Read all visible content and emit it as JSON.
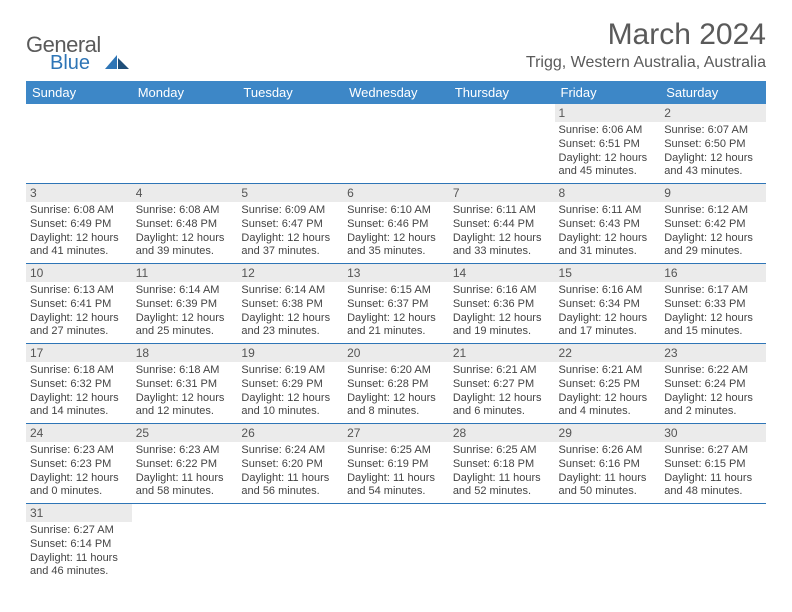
{
  "brand": {
    "part1": "General",
    "part2": "Blue"
  },
  "title": "March 2024",
  "location": "Trigg, Western Australia, Australia",
  "colors": {
    "header_bg": "#3d87c7",
    "header_text": "#ffffff",
    "row_divider": "#2e75b6",
    "daynum_bg": "#ebebeb",
    "body_text": "#444444",
    "title_text": "#5a5a5a"
  },
  "fonts": {
    "body_pt": 11,
    "daynum_pt": 12,
    "header_pt": 13,
    "title_pt": 30,
    "location_pt": 16
  },
  "weekdays": [
    "Sunday",
    "Monday",
    "Tuesday",
    "Wednesday",
    "Thursday",
    "Friday",
    "Saturday"
  ],
  "leading_blanks": 5,
  "days": [
    {
      "n": "1",
      "sr": "6:06 AM",
      "ss": "6:51 PM",
      "dh": "12",
      "dm": "45"
    },
    {
      "n": "2",
      "sr": "6:07 AM",
      "ss": "6:50 PM",
      "dh": "12",
      "dm": "43"
    },
    {
      "n": "3",
      "sr": "6:08 AM",
      "ss": "6:49 PM",
      "dh": "12",
      "dm": "41"
    },
    {
      "n": "4",
      "sr": "6:08 AM",
      "ss": "6:48 PM",
      "dh": "12",
      "dm": "39"
    },
    {
      "n": "5",
      "sr": "6:09 AM",
      "ss": "6:47 PM",
      "dh": "12",
      "dm": "37"
    },
    {
      "n": "6",
      "sr": "6:10 AM",
      "ss": "6:46 PM",
      "dh": "12",
      "dm": "35"
    },
    {
      "n": "7",
      "sr": "6:11 AM",
      "ss": "6:44 PM",
      "dh": "12",
      "dm": "33"
    },
    {
      "n": "8",
      "sr": "6:11 AM",
      "ss": "6:43 PM",
      "dh": "12",
      "dm": "31"
    },
    {
      "n": "9",
      "sr": "6:12 AM",
      "ss": "6:42 PM",
      "dh": "12",
      "dm": "29"
    },
    {
      "n": "10",
      "sr": "6:13 AM",
      "ss": "6:41 PM",
      "dh": "12",
      "dm": "27"
    },
    {
      "n": "11",
      "sr": "6:14 AM",
      "ss": "6:39 PM",
      "dh": "12",
      "dm": "25"
    },
    {
      "n": "12",
      "sr": "6:14 AM",
      "ss": "6:38 PM",
      "dh": "12",
      "dm": "23"
    },
    {
      "n": "13",
      "sr": "6:15 AM",
      "ss": "6:37 PM",
      "dh": "12",
      "dm": "21"
    },
    {
      "n": "14",
      "sr": "6:16 AM",
      "ss": "6:36 PM",
      "dh": "12",
      "dm": "19"
    },
    {
      "n": "15",
      "sr": "6:16 AM",
      "ss": "6:34 PM",
      "dh": "12",
      "dm": "17"
    },
    {
      "n": "16",
      "sr": "6:17 AM",
      "ss": "6:33 PM",
      "dh": "12",
      "dm": "15"
    },
    {
      "n": "17",
      "sr": "6:18 AM",
      "ss": "6:32 PM",
      "dh": "12",
      "dm": "14"
    },
    {
      "n": "18",
      "sr": "6:18 AM",
      "ss": "6:31 PM",
      "dh": "12",
      "dm": "12"
    },
    {
      "n": "19",
      "sr": "6:19 AM",
      "ss": "6:29 PM",
      "dh": "12",
      "dm": "10"
    },
    {
      "n": "20",
      "sr": "6:20 AM",
      "ss": "6:28 PM",
      "dh": "12",
      "dm": "8"
    },
    {
      "n": "21",
      "sr": "6:21 AM",
      "ss": "6:27 PM",
      "dh": "12",
      "dm": "6"
    },
    {
      "n": "22",
      "sr": "6:21 AM",
      "ss": "6:25 PM",
      "dh": "12",
      "dm": "4"
    },
    {
      "n": "23",
      "sr": "6:22 AM",
      "ss": "6:24 PM",
      "dh": "12",
      "dm": "2"
    },
    {
      "n": "24",
      "sr": "6:23 AM",
      "ss": "6:23 PM",
      "dh": "12",
      "dm": "0"
    },
    {
      "n": "25",
      "sr": "6:23 AM",
      "ss": "6:22 PM",
      "dh": "11",
      "dm": "58"
    },
    {
      "n": "26",
      "sr": "6:24 AM",
      "ss": "6:20 PM",
      "dh": "11",
      "dm": "56"
    },
    {
      "n": "27",
      "sr": "6:25 AM",
      "ss": "6:19 PM",
      "dh": "11",
      "dm": "54"
    },
    {
      "n": "28",
      "sr": "6:25 AM",
      "ss": "6:18 PM",
      "dh": "11",
      "dm": "52"
    },
    {
      "n": "29",
      "sr": "6:26 AM",
      "ss": "6:16 PM",
      "dh": "11",
      "dm": "50"
    },
    {
      "n": "30",
      "sr": "6:27 AM",
      "ss": "6:15 PM",
      "dh": "11",
      "dm": "48"
    },
    {
      "n": "31",
      "sr": "6:27 AM",
      "ss": "6:14 PM",
      "dh": "11",
      "dm": "46"
    }
  ],
  "labels": {
    "sunrise": "Sunrise:",
    "sunset": "Sunset:",
    "daylight": "Daylight:",
    "hours": "hours",
    "and": "and",
    "minutes": "minutes."
  }
}
